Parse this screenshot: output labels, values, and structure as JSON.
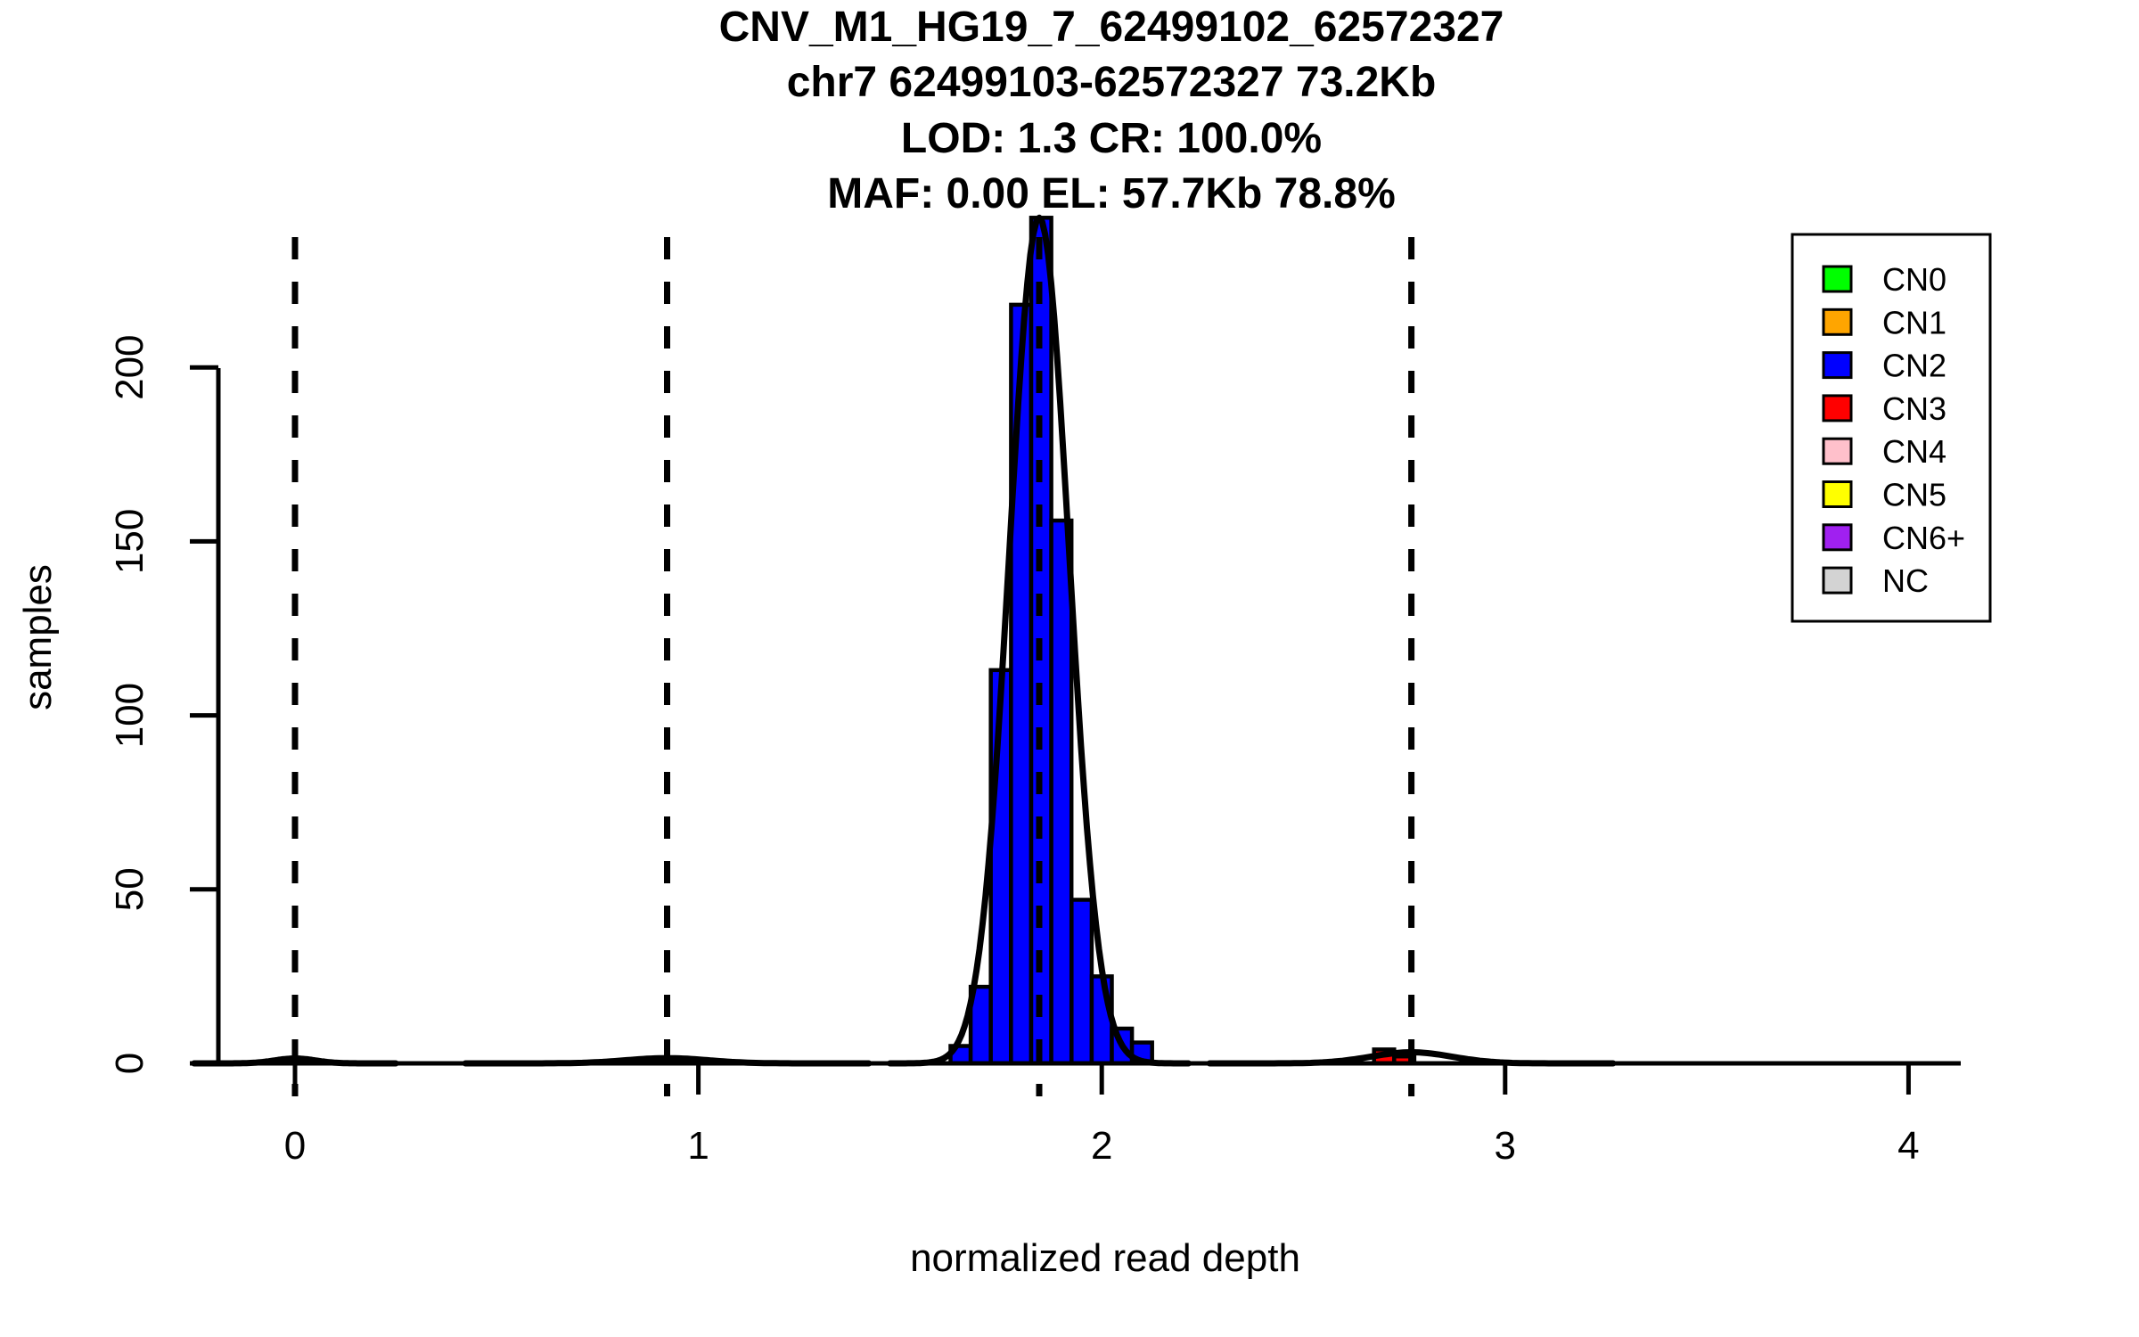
{
  "chart_data": {
    "type": "bar",
    "subtype": "histogram",
    "title_lines": [
      "CNV_M1_HG19_7_62499102_62572327",
      "chr7 62499103-62572327 73.2Kb",
      "LOD: 1.3 CR: 100.0%",
      "MAF: 0.00 EL: 57.7Kb 78.8%"
    ],
    "xlabel": "normalized read depth",
    "ylabel": "samples",
    "x_ticks": [
      0,
      1,
      2,
      3,
      4
    ],
    "y_ticks": [
      0,
      50,
      100,
      150,
      200
    ],
    "xlim": [
      -0.09,
      4.13
    ],
    "ylim": [
      0,
      252
    ],
    "grid": false,
    "bin_width": 0.05,
    "series": [
      {
        "name": "CN2",
        "color": "#0000FF",
        "bars": [
          {
            "x0": 1.625,
            "count": 5
          },
          {
            "x0": 1.675,
            "count": 22
          },
          {
            "x0": 1.725,
            "count": 113
          },
          {
            "x0": 1.775,
            "count": 218
          },
          {
            "x0": 1.825,
            "count": 243
          },
          {
            "x0": 1.875,
            "count": 156
          },
          {
            "x0": 1.925,
            "count": 47
          },
          {
            "x0": 1.975,
            "count": 25
          },
          {
            "x0": 2.025,
            "count": 10
          },
          {
            "x0": 2.075,
            "count": 6
          }
        ]
      },
      {
        "name": "CN3",
        "color": "#FF0000",
        "bars": [
          {
            "x0": 2.675,
            "count": 4
          },
          {
            "x0": 2.725,
            "count": 2
          }
        ]
      }
    ],
    "dashed_vlines_x": [
      0,
      0.9225,
      1.845,
      2.7675
    ],
    "gaussian_curves": [
      {
        "mean": 0.0,
        "sd": 0.05,
        "peak": 1.4
      },
      {
        "mean": 0.9225,
        "sd": 0.1,
        "peak": 1.5
      },
      {
        "mean": 1.845,
        "sd": 0.074,
        "peak": 243
      },
      {
        "mean": 2.7675,
        "sd": 0.1,
        "peak": 3.2
      }
    ]
  },
  "legend": {
    "position": "top-right",
    "entries": [
      {
        "label": "CN0",
        "color": "#00FF00"
      },
      {
        "label": "CN1",
        "color": "#FFA500"
      },
      {
        "label": "CN2",
        "color": "#0000FF"
      },
      {
        "label": "CN3",
        "color": "#FF0000"
      },
      {
        "label": "CN4",
        "color": "#FFC0CB"
      },
      {
        "label": "CN5",
        "color": "#FFFF00"
      },
      {
        "label": "CN6+",
        "color": "#A020F0"
      },
      {
        "label": "NC",
        "color": "#D3D3D3"
      }
    ]
  },
  "colors": {
    "foreground": "#000000",
    "background": "#FFFFFF"
  }
}
